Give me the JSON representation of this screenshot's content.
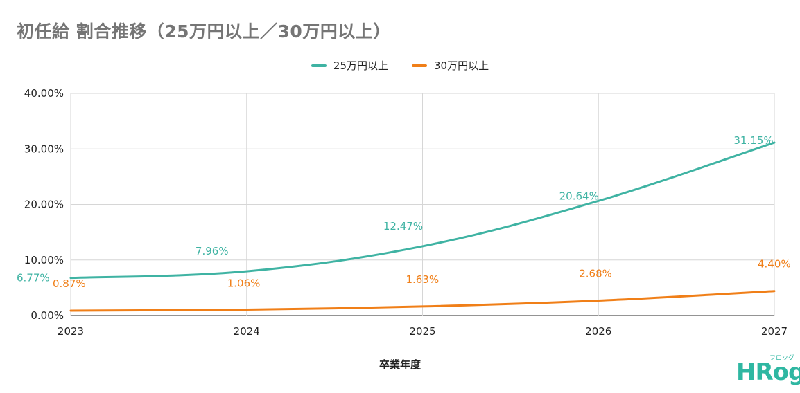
{
  "colors": {
    "series_1": "#3fb3a3",
    "series_2": "#f07f18",
    "grid": "#d6d6d6",
    "title": "#757575",
    "logo": "#2fb7a2"
  },
  "logo": {
    "text": "HRog",
    "sub_text": "フロッグ"
  },
  "chart_data": {
    "type": "line",
    "title": "初任給 割合推移（25万円以上／30万円以上）",
    "xlabel": "卒業年度",
    "ylabel": "",
    "x": [
      "2023",
      "2024",
      "2025",
      "2026",
      "2027"
    ],
    "ylim": [
      0,
      40
    ],
    "y_ticks": [
      "0.00%",
      "10.00%",
      "20.00%",
      "30.00%",
      "40.00%"
    ],
    "grid": true,
    "legend_position": "top-center",
    "series": [
      {
        "name": "25万円以上",
        "values": [
          6.77,
          7.96,
          12.47,
          20.64,
          31.15
        ],
        "labels": [
          "6.77%",
          "7.96%",
          "12.47%",
          "20.64%",
          "31.15%"
        ]
      },
      {
        "name": "30万円以上",
        "values": [
          0.87,
          1.06,
          1.63,
          2.68,
          4.4
        ],
        "labels": [
          "0.87%",
          "1.06%",
          "1.63%",
          "2.68%",
          "4.40%"
        ]
      }
    ]
  }
}
